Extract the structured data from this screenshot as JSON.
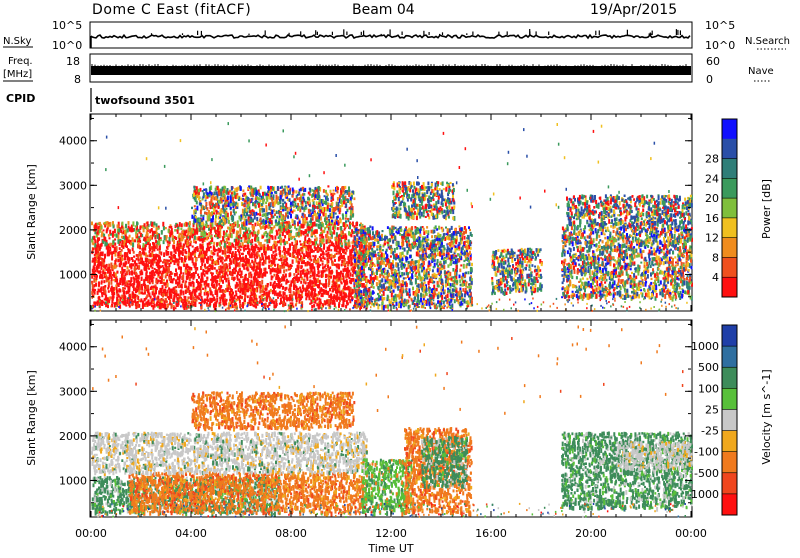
{
  "header": {
    "station": "Dome C East (fitACF)",
    "beam": "Beam 04",
    "date": "19/Apr/2015"
  },
  "status_panels": {
    "nsky_label": "N.Sky",
    "nsky_ticks": [
      "10^5",
      "10^0"
    ],
    "nsearch_label": "N.Search",
    "nsearch_ticks": [
      "10^5",
      "10^0"
    ],
    "freq_label": "Freq.",
    "freq_unit": "[MHz]",
    "freq_ticks": [
      "18",
      "8"
    ],
    "nave_label": "Nave",
    "nave_ticks": [
      "60",
      "0"
    ],
    "cpid_label": "CPID",
    "cpid_value": "twofsound 3501"
  },
  "chart_data": [
    {
      "type": "heatmap",
      "name": "power",
      "ylabel": "Slant Range [km]",
      "yticks": [
        "1000",
        "2000",
        "3000",
        "4000"
      ],
      "ylim": [
        180,
        4600
      ],
      "xlim_hours": [
        0,
        24
      ],
      "colorbar_label": "Power [dB]",
      "colorbar_ticks": [
        "4",
        "8",
        "12",
        "16",
        "20",
        "24",
        "28"
      ],
      "colorbar_colors": [
        "#1010ff",
        "#2a4fa8",
        "#2f7e78",
        "#3a9a5c",
        "#7fbf3c",
        "#f0c020",
        "#f08c1e",
        "#f0501e",
        "#ff1010"
      ],
      "dominant_color": "#ff1010",
      "echo_regions": [
        {
          "t": [
            0.0,
            11.0
          ],
          "r": [
            300,
            1700
          ],
          "level": "high"
        },
        {
          "t": [
            0.0,
            11.0
          ],
          "r": [
            1700,
            2200
          ],
          "level": "medium"
        },
        {
          "t": [
            4.0,
            10.5
          ],
          "r": [
            2200,
            3000
          ],
          "level": "mixed"
        },
        {
          "t": [
            10.5,
            15.2
          ],
          "r": [
            300,
            2100
          ],
          "level": "mixed"
        },
        {
          "t": [
            12.0,
            14.5
          ],
          "r": [
            2300,
            3100
          ],
          "level": "low"
        },
        {
          "t": [
            16.0,
            18.0
          ],
          "r": [
            600,
            1600
          ],
          "level": "low"
        },
        {
          "t": [
            18.8,
            24.0
          ],
          "r": [
            500,
            2100
          ],
          "level": "mixed"
        },
        {
          "t": [
            19.0,
            24.0
          ],
          "r": [
            2100,
            2800
          ],
          "level": "low"
        }
      ]
    },
    {
      "type": "heatmap",
      "name": "velocity",
      "ylabel": "Slant Range [km]",
      "yticks": [
        "1000",
        "2000",
        "3000",
        "4000"
      ],
      "ylim": [
        180,
        4600
      ],
      "xlim_hours": [
        0,
        24
      ],
      "xticks": [
        "00:00",
        "04:00",
        "08:00",
        "12:00",
        "16:00",
        "20:00",
        "00:00"
      ],
      "xlabel": "Time UT",
      "colorbar_label": "Velocity [m s^-1]",
      "colorbar_ticks": [
        "1000",
        "500",
        "100",
        "25",
        "-25",
        "-100",
        "-500",
        "-1000"
      ],
      "colorbar_colors": [
        "#1f3fa8",
        "#2f6fa0",
        "#3d8c5a",
        "#58c03a",
        "#c8c8c8",
        "#f0a81e",
        "#f07a1e",
        "#f0461e",
        "#ff1010"
      ],
      "echo_regions": [
        {
          "t": [
            0.0,
            7.5
          ],
          "r": [
            300,
            1100
          ],
          "level": "green"
        },
        {
          "t": [
            1.5,
            11.0
          ],
          "r": [
            300,
            1200
          ],
          "level": "orange"
        },
        {
          "t": [
            0.0,
            11.0
          ],
          "r": [
            1200,
            2100
          ],
          "level": "grey"
        },
        {
          "t": [
            4.0,
            10.5
          ],
          "r": [
            2200,
            3000
          ],
          "level": "orange"
        },
        {
          "t": [
            10.8,
            12.8
          ],
          "r": [
            300,
            1500
          ],
          "level": "lightgreen"
        },
        {
          "t": [
            12.5,
            15.2
          ],
          "r": [
            300,
            2200
          ],
          "level": "orange"
        },
        {
          "t": [
            13.2,
            15.0
          ],
          "r": [
            900,
            2000
          ],
          "level": "green"
        },
        {
          "t": [
            18.8,
            24.0
          ],
          "r": [
            400,
            2100
          ],
          "level": "green"
        },
        {
          "t": [
            21.0,
            24.0
          ],
          "r": [
            1300,
            1900
          ],
          "level": "grey"
        }
      ]
    }
  ]
}
